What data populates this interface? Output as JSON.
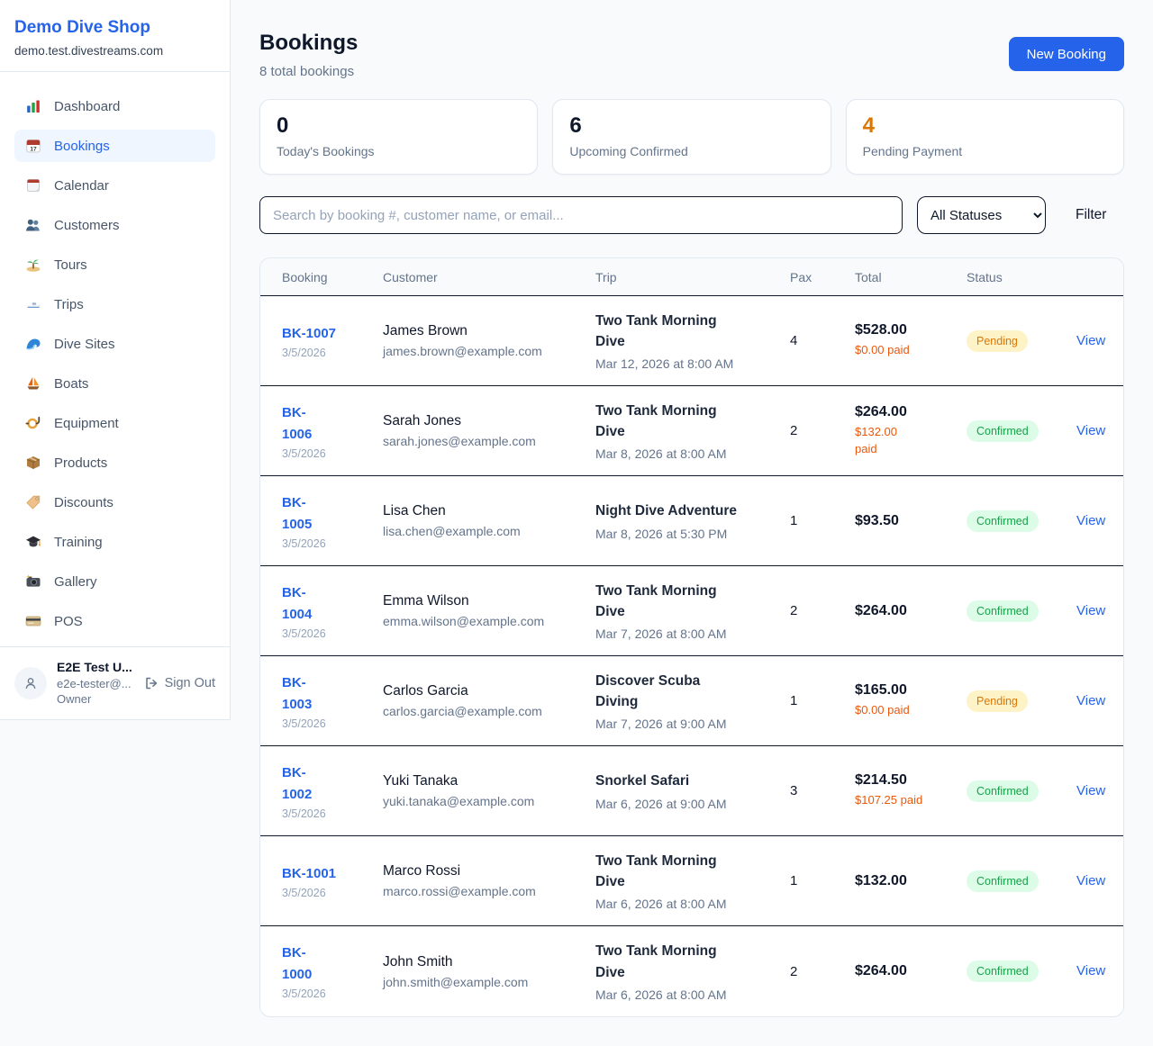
{
  "app": {
    "background": "#f8fafc",
    "accent": "#2563eb"
  },
  "sidebar": {
    "brand": {
      "name": "Demo Dive Shop",
      "domain": "demo.test.divestreams.com"
    },
    "items": [
      {
        "slug": "dashboard",
        "label": "Dashboard",
        "icon": "bar-chart-icon",
        "active": false
      },
      {
        "slug": "bookings",
        "label": "Bookings",
        "icon": "calendar-17-icon",
        "active": true
      },
      {
        "slug": "calendar",
        "label": "Calendar",
        "icon": "calendar-icon",
        "active": false
      },
      {
        "slug": "customers",
        "label": "Customers",
        "icon": "people-icon",
        "active": false
      },
      {
        "slug": "tours",
        "label": "Tours",
        "icon": "island-icon",
        "active": false
      },
      {
        "slug": "trips",
        "label": "Trips",
        "icon": "speedboat-icon",
        "active": false
      },
      {
        "slug": "dive-sites",
        "label": "Dive Sites",
        "icon": "wave-icon",
        "active": false
      },
      {
        "slug": "boats",
        "label": "Boats",
        "icon": "sailboat-icon",
        "active": false
      },
      {
        "slug": "equipment",
        "label": "Equipment",
        "icon": "dive-mask-icon",
        "active": false
      },
      {
        "slug": "products",
        "label": "Products",
        "icon": "package-icon",
        "active": false
      },
      {
        "slug": "discounts",
        "label": "Discounts",
        "icon": "tag-icon",
        "active": false
      },
      {
        "slug": "training",
        "label": "Training",
        "icon": "graduation-cap-icon",
        "active": false
      },
      {
        "slug": "gallery",
        "label": "Gallery",
        "icon": "camera-icon",
        "active": false
      },
      {
        "slug": "pos",
        "label": "POS",
        "icon": "credit-card-icon",
        "active": false
      }
    ],
    "user": {
      "name": "E2E Test U...",
      "email": "e2e-tester@...",
      "role": "Owner",
      "signout_label": "Sign Out"
    }
  },
  "header": {
    "title": "Bookings",
    "subtitle": "8 total bookings",
    "new_booking_label": "New Booking"
  },
  "stats": [
    {
      "value": "0",
      "label": "Today's Bookings",
      "accent": false
    },
    {
      "value": "6",
      "label": "Upcoming Confirmed",
      "accent": false
    },
    {
      "value": "4",
      "label": "Pending Payment",
      "accent": true,
      "accent_color": "#d97706"
    }
  ],
  "toolbar": {
    "search_placeholder": "Search by booking #, customer name, or email...",
    "status_filter_value": "All Statuses",
    "filter_label": "Filter"
  },
  "table": {
    "columns": [
      "Booking",
      "Customer",
      "Trip",
      "Pax",
      "Total",
      "Status",
      ""
    ],
    "view_label": "View",
    "status_colors": {
      "Pending": {
        "bg": "#fef3c7",
        "fg": "#d97706"
      },
      "Confirmed": {
        "bg": "#dcfce7",
        "fg": "#16a34a"
      }
    },
    "paid_color": "#ea580c",
    "rows": [
      {
        "id": "BK-1007",
        "booking_date": "3/5/2026",
        "customer": "James Brown",
        "email": "james.brown@example.com",
        "trip": "Two Tank Morning Dive",
        "trip_datetime": "Mar 12, 2026 at 8:00 AM",
        "pax": "4",
        "total": "$528.00",
        "paid": "$0.00 paid",
        "status": "Pending"
      },
      {
        "id": "BK-1006",
        "booking_date": "3/5/2026",
        "customer": "Sarah Jones",
        "email": "sarah.jones@example.com",
        "trip": "Two Tank Morning Dive",
        "trip_datetime": "Mar 8, 2026 at 8:00 AM",
        "pax": "2",
        "total": "$264.00",
        "paid": "$132.00 paid",
        "status": "Confirmed"
      },
      {
        "id": "BK-1005",
        "booking_date": "3/5/2026",
        "customer": "Lisa Chen",
        "email": "lisa.chen@example.com",
        "trip": "Night Dive Adventure",
        "trip_datetime": "Mar 8, 2026 at 5:30 PM",
        "pax": "1",
        "total": "$93.50",
        "paid": null,
        "status": "Confirmed"
      },
      {
        "id": "BK-1004",
        "booking_date": "3/5/2026",
        "customer": "Emma Wilson",
        "email": "emma.wilson@example.com",
        "trip": "Two Tank Morning Dive",
        "trip_datetime": "Mar 7, 2026 at 8:00 AM",
        "pax": "2",
        "total": "$264.00",
        "paid": null,
        "status": "Confirmed"
      },
      {
        "id": "BK-1003",
        "booking_date": "3/5/2026",
        "customer": "Carlos Garcia",
        "email": "carlos.garcia@example.com",
        "trip": "Discover Scuba Diving",
        "trip_datetime": "Mar 7, 2026 at 9:00 AM",
        "pax": "1",
        "total": "$165.00",
        "paid": "$0.00 paid",
        "status": "Pending"
      },
      {
        "id": "BK-1002",
        "booking_date": "3/5/2026",
        "customer": "Yuki Tanaka",
        "email": "yuki.tanaka@example.com",
        "trip": "Snorkel Safari",
        "trip_datetime": "Mar 6, 2026 at 9:00 AM",
        "pax": "3",
        "total": "$214.50",
        "paid": "$107.25 paid",
        "status": "Confirmed"
      },
      {
        "id": "BK-1001",
        "booking_date": "3/5/2026",
        "customer": "Marco Rossi",
        "email": "marco.rossi@example.com",
        "trip": "Two Tank Morning Dive",
        "trip_datetime": "Mar 6, 2026 at 8:00 AM",
        "pax": "1",
        "total": "$132.00",
        "paid": null,
        "status": "Confirmed"
      },
      {
        "id": "BK-1000",
        "booking_date": "3/5/2026",
        "customer": "John Smith",
        "email": "john.smith@example.com",
        "trip": "Two Tank Morning Dive",
        "trip_datetime": "Mar 6, 2026 at 8:00 AM",
        "pax": "2",
        "total": "$264.00",
        "paid": null,
        "status": "Confirmed"
      }
    ]
  }
}
